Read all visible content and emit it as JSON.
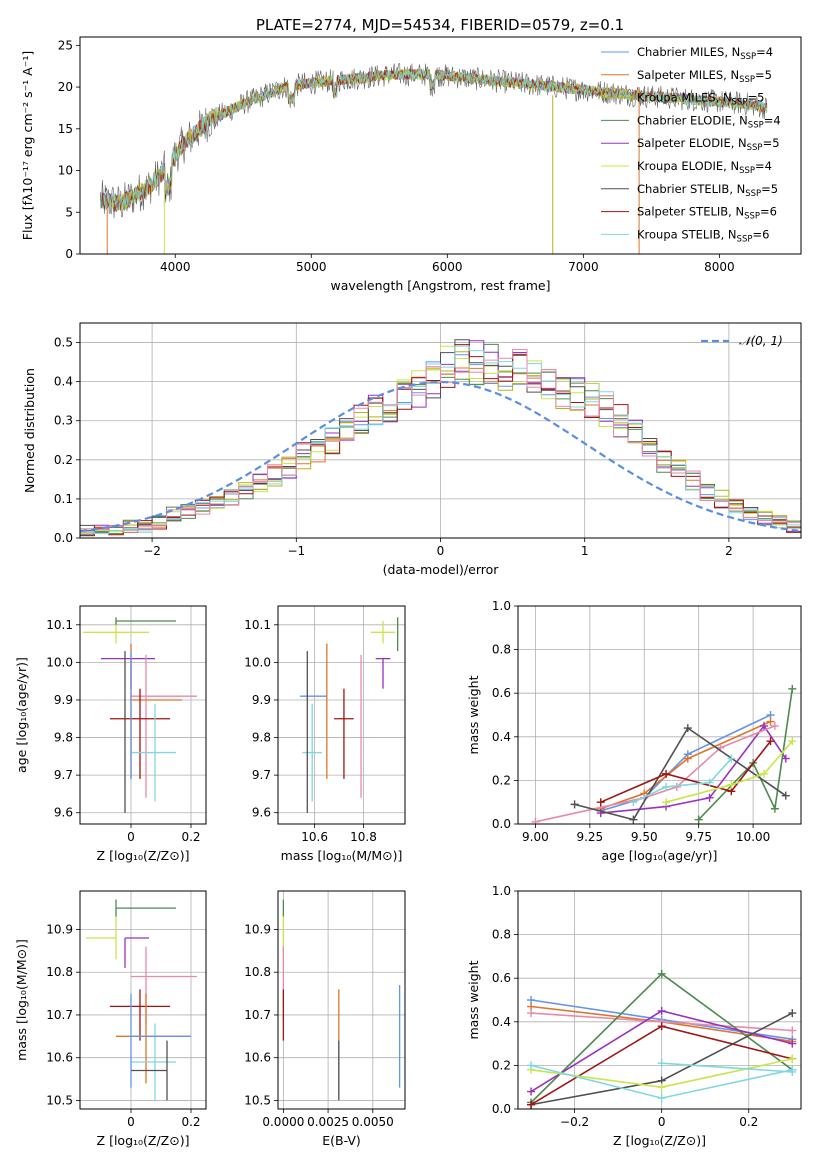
{
  "title": "PLATE=2774, MJD=54534, FIBERID=0579, z=0.1",
  "colors": {
    "chabrier_miles": "#6495ed",
    "salpeter_miles": "#e0742a",
    "kroupa_miles": "#b5b517",
    "chabrier_elodie": "#4f8a4f",
    "salpeter_elodie": "#9b30c0",
    "kroupa_elodie": "#c8e64c",
    "chabrier_stelib": "#505050",
    "salpeter_stelib": "#a01414",
    "kroupa_stelib": "#7fd8df",
    "pink": "#e88aaa",
    "gaussian": "#5b8ee0"
  },
  "chart_data": [
    {
      "id": "spectrum",
      "type": "line",
      "xlabel": "wavelength [Angstrom, rest frame]",
      "ylabel": "Flux [fλ10⁻¹⁷ erg cm⁻² s⁻¹ A⁻¹]",
      "xlim": [
        3300,
        8600
      ],
      "ylim": [
        0,
        26
      ],
      "xticks": [
        4000,
        5000,
        6000,
        7000,
        8000
      ],
      "yticks": [
        0,
        5,
        10,
        15,
        20,
        25
      ],
      "legend_position": "top-right",
      "continuum": {
        "x": [
          3450,
          3600,
          3800,
          3950,
          4050,
          4250,
          4500,
          4800,
          5000,
          5300,
          5600,
          5900,
          6200,
          6500,
          6800,
          7100,
          7400,
          7800,
          8200,
          8350
        ],
        "y": [
          6.5,
          6.0,
          8.0,
          10.5,
          13.0,
          16.0,
          18.0,
          20.0,
          20.5,
          21.0,
          21.5,
          21.5,
          21.0,
          20.5,
          20.0,
          19.5,
          19.0,
          18.5,
          18.0,
          17.5
        ]
      },
      "series": [
        {
          "name": "Chabrier MILES, N",
          "sub": "SSP",
          "suffix": "=4",
          "color": "#6495ed"
        },
        {
          "name": "Salpeter MILES, N",
          "sub": "SSP",
          "suffix": "=5",
          "color": "#e0742a"
        },
        {
          "name": "Kroupa MILES, N",
          "sub": "SSP",
          "suffix": "=5",
          "color": "#b5b517"
        },
        {
          "name": "Chabrier ELODIE, N",
          "sub": "SSP",
          "suffix": "=4",
          "color": "#4f8a4f"
        },
        {
          "name": "Salpeter ELODIE, N",
          "sub": "SSP",
          "suffix": "=5",
          "color": "#9b30c0"
        },
        {
          "name": "Kroupa ELODIE, N",
          "sub": "SSP",
          "suffix": "=4",
          "color": "#c8e64c"
        },
        {
          "name": "Chabrier STELIB, N",
          "sub": "SSP",
          "suffix": "=5",
          "color": "#505050"
        },
        {
          "name": "Salpeter STELIB, N",
          "sub": "SSP",
          "suffix": "=6",
          "color": "#a01414"
        },
        {
          "name": "Kroupa STELIB, N",
          "sub": "SSP",
          "suffix": "=6",
          "color": "#7fd8df"
        }
      ]
    },
    {
      "id": "residuals",
      "type": "step",
      "xlabel": "(data-model)/error",
      "ylabel": "Normed distribution",
      "xlim": [
        -2.5,
        2.5
      ],
      "ylim": [
        0,
        0.55
      ],
      "xticks": [
        -2,
        -1,
        0,
        1,
        2
      ],
      "yticks": [
        0.0,
        0.1,
        0.2,
        0.3,
        0.4,
        0.5
      ],
      "legend": "𝒩(0, 1)",
      "legend_position": "top-right",
      "bin_width": 0.1,
      "bin_start": -2.5,
      "mean_hist": [
        0.02,
        0.02,
        0.02,
        0.03,
        0.03,
        0.04,
        0.06,
        0.07,
        0.08,
        0.09,
        0.1,
        0.12,
        0.14,
        0.16,
        0.18,
        0.21,
        0.23,
        0.25,
        0.27,
        0.3,
        0.32,
        0.34,
        0.36,
        0.38,
        0.4,
        0.44,
        0.45,
        0.45,
        0.44,
        0.42,
        0.43,
        0.42,
        0.4,
        0.38,
        0.37,
        0.35,
        0.33,
        0.3,
        0.27,
        0.24,
        0.2,
        0.17,
        0.15,
        0.12,
        0.1,
        0.08,
        0.06,
        0.05,
        0.04,
        0.03
      ],
      "series_colors": [
        "#6495ed",
        "#e0742a",
        "#b5b517",
        "#4f8a4f",
        "#9b30c0",
        "#c8e64c",
        "#505050",
        "#a01414",
        "#7fd8df",
        "#e88aaa"
      ]
    },
    {
      "id": "age_vs_Z",
      "type": "errorbar",
      "xlabel": "Z [log₁₀(Z/Z⊙)]",
      "ylabel": "age  [log₁₀(age/yr)]",
      "xlim": [
        -0.17,
        0.25
      ],
      "ylim": [
        9.57,
        10.15
      ],
      "xticks": [
        0.0,
        0.2
      ],
      "yticks": [
        9.6,
        9.7,
        9.8,
        9.9,
        10.0,
        10.1
      ],
      "points": [
        {
          "x": -0.05,
          "xerr": [
            0.11,
            0.11
          ],
          "y": 10.08,
          "yerr": [
            0.03,
            0.03
          ],
          "color": "#c8e64c"
        },
        {
          "x": -0.05,
          "xerr": [
            0.0,
            0.2
          ],
          "y": 10.11,
          "yerr": [
            0.01,
            0.01
          ],
          "color": "#4f8a4f"
        },
        {
          "x": 0.0,
          "xerr": [
            0.1,
            0.08
          ],
          "y": 10.01,
          "yerr": [
            0.08,
            0.0
          ],
          "color": "#9b30c0"
        },
        {
          "x": 0.05,
          "xerr": [
            0.05,
            0.17
          ],
          "y": 9.91,
          "yerr": [
            0.27,
            0.11
          ],
          "color": "#e88aaa"
        },
        {
          "x": 0.0,
          "xerr": [
            0.0,
            0.17
          ],
          "y": 9.9,
          "yerr": [
            0.21,
            0.15
          ],
          "color": "#e0742a"
        },
        {
          "x": 0.03,
          "xerr": [
            0.1,
            0.1
          ],
          "y": 9.85,
          "yerr": [
            0.16,
            0.08
          ],
          "color": "#a01414"
        },
        {
          "x": 0.08,
          "xerr": [
            0.08,
            0.07
          ],
          "y": 9.76,
          "yerr": [
            0.13,
            0.13
          ],
          "color": "#7fd8df"
        },
        {
          "x": 0.0,
          "xerr": [
            0.0,
            0.0
          ],
          "y": 9.86,
          "yerr": [
            0.17,
            0.17
          ],
          "color": "#6495ed"
        },
        {
          "x": -0.02,
          "xerr": [
            0.0,
            0.0
          ],
          "y": 9.8,
          "yerr": [
            0.2,
            0.23
          ],
          "color": "#505050"
        }
      ]
    },
    {
      "id": "age_vs_mass",
      "type": "errorbar",
      "xlabel": "mass [log₁₀(M/M⊙)]",
      "ylabel": "",
      "xlim": [
        10.45,
        10.97
      ],
      "ylim": [
        9.57,
        10.15
      ],
      "xticks": [
        10.6,
        10.8
      ],
      "yticks": [
        9.6,
        9.7,
        9.8,
        9.9,
        10.0,
        10.1
      ],
      "points": [
        {
          "x": 10.88,
          "xerr": [
            0.05,
            0.05
          ],
          "y": 10.08,
          "yerr": [
            0.03,
            0.03
          ],
          "color": "#c8e64c"
        },
        {
          "x": 10.94,
          "xerr": [
            0.0,
            0.0
          ],
          "y": 10.11,
          "yerr": [
            0.08,
            0.01
          ],
          "color": "#4f8a4f"
        },
        {
          "x": 10.88,
          "xerr": [
            0.03,
            0.03
          ],
          "y": 10.01,
          "yerr": [
            0.08,
            0.0
          ],
          "color": "#9b30c0"
        },
        {
          "x": 10.79,
          "xerr": [
            0.0,
            0.0
          ],
          "y": 9.91,
          "yerr": [
            0.27,
            0.11
          ],
          "color": "#e88aaa"
        },
        {
          "x": 10.65,
          "xerr": [
            0.0,
            0.0
          ],
          "y": 9.9,
          "yerr": [
            0.21,
            0.15
          ],
          "color": "#e0742a"
        },
        {
          "x": 10.72,
          "xerr": [
            0.04,
            0.04
          ],
          "y": 9.85,
          "yerr": [
            0.16,
            0.08
          ],
          "color": "#a01414"
        },
        {
          "x": 10.59,
          "xerr": [
            0.04,
            0.04
          ],
          "y": 9.76,
          "yerr": [
            0.13,
            0.13
          ],
          "color": "#7fd8df"
        },
        {
          "x": 10.65,
          "xerr": [
            0.11,
            0.0
          ],
          "y": 9.91,
          "yerr": [
            0.0,
            0.0
          ],
          "color": "#6495ed"
        },
        {
          "x": 10.57,
          "xerr": [
            0.0,
            0.0
          ],
          "y": 9.8,
          "yerr": [
            0.2,
            0.23
          ],
          "color": "#505050"
        }
      ]
    },
    {
      "id": "mass_weight_vs_age",
      "type": "line",
      "xlabel": "age  [log₁₀(age/yr)]",
      "ylabel": "mass weight",
      "xlim": [
        8.92,
        10.22
      ],
      "ylim": [
        0,
        1
      ],
      "xticks": [
        9.0,
        9.25,
        9.5,
        9.75,
        10.0
      ],
      "yticks": [
        0.0,
        0.2,
        0.4,
        0.6,
        0.8,
        1.0
      ],
      "series": [
        {
          "color": "#6495ed",
          "x": [
            9.3,
            9.5,
            9.7,
            10.08
          ],
          "y": [
            0.06,
            0.12,
            0.32,
            0.5
          ]
        },
        {
          "color": "#e0742a",
          "x": [
            9.3,
            9.5,
            9.7,
            10.08
          ],
          "y": [
            0.07,
            0.14,
            0.3,
            0.47
          ]
        },
        {
          "color": "#9b30c0",
          "x": [
            9.3,
            9.6,
            9.8,
            10.05,
            10.15
          ],
          "y": [
            0.05,
            0.08,
            0.12,
            0.45,
            0.3
          ]
        },
        {
          "color": "#e88aaa",
          "x": [
            9.0,
            9.5,
            9.65,
            9.85,
            10.1
          ],
          "y": [
            0.01,
            0.12,
            0.17,
            0.35,
            0.45
          ]
        },
        {
          "color": "#4f8a4f",
          "x": [
            9.75,
            10.0,
            10.1,
            10.18
          ],
          "y": [
            0.02,
            0.28,
            0.07,
            0.62
          ]
        },
        {
          "color": "#505050",
          "x": [
            9.18,
            9.45,
            9.7,
            10.15
          ],
          "y": [
            0.09,
            0.02,
            0.44,
            0.13
          ]
        },
        {
          "color": "#a01414",
          "x": [
            9.3,
            9.6,
            9.9,
            10.08
          ],
          "y": [
            0.1,
            0.23,
            0.15,
            0.38
          ]
        },
        {
          "color": "#c8e64c",
          "x": [
            9.6,
            9.9,
            10.05,
            10.18
          ],
          "y": [
            0.1,
            0.18,
            0.23,
            0.38
          ]
        },
        {
          "color": "#7fd8df",
          "x": [
            9.45,
            9.6,
            9.8,
            9.9
          ],
          "y": [
            0.1,
            0.17,
            0.19,
            0.3
          ]
        }
      ]
    },
    {
      "id": "mass_vs_Z",
      "type": "errorbar",
      "xlabel": "Z [log₁₀(Z/Z⊙)]",
      "ylabel": "mass [log₁₀(M/M⊙)]",
      "xlim": [
        -0.17,
        0.25
      ],
      "ylim": [
        10.48,
        10.99
      ],
      "xticks": [
        0.0,
        0.2
      ],
      "yticks": [
        10.5,
        10.6,
        10.7,
        10.8,
        10.9
      ],
      "points": [
        {
          "x": -0.05,
          "xerr": [
            0.0,
            0.2
          ],
          "y": 10.95,
          "yerr": [
            0.02,
            0.02
          ],
          "color": "#4f8a4f"
        },
        {
          "x": -0.05,
          "xerr": [
            0.1,
            0.0
          ],
          "y": 10.88,
          "yerr": [
            0.05,
            0.05
          ],
          "color": "#c8e64c"
        },
        {
          "x": -0.02,
          "xerr": [
            0.0,
            0.08
          ],
          "y": 10.88,
          "yerr": [
            0.07,
            0.0
          ],
          "color": "#9b30c0"
        },
        {
          "x": 0.05,
          "xerr": [
            0.05,
            0.17
          ],
          "y": 10.79,
          "yerr": [
            0.11,
            0.07
          ],
          "color": "#e88aaa"
        },
        {
          "x": 0.03,
          "xerr": [
            0.1,
            0.1
          ],
          "y": 10.72,
          "yerr": [
            0.08,
            0.04
          ],
          "color": "#a01414"
        },
        {
          "x": 0.05,
          "xerr": [
            0.1,
            0.15
          ],
          "y": 10.65,
          "yerr": [
            0.11,
            0.1
          ],
          "color": "#e0742a"
        },
        {
          "x": 0.08,
          "xerr": [
            0.08,
            0.07
          ],
          "y": 10.59,
          "yerr": [
            0.09,
            0.09
          ],
          "color": "#7fd8df"
        },
        {
          "x": 0.0,
          "xerr": [
            0.0,
            0.2
          ],
          "y": 10.65,
          "yerr": [
            0.12,
            0.1
          ],
          "color": "#6495ed"
        },
        {
          "x": 0.12,
          "xerr": [
            0.12,
            0.0
          ],
          "y": 10.57,
          "yerr": [
            0.07,
            0.07
          ],
          "color": "#505050"
        }
      ]
    },
    {
      "id": "mass_vs_EBV",
      "type": "errorbar",
      "xlabel": "E(B-V)",
      "ylabel": "",
      "xlim": [
        -0.0003,
        0.0068
      ],
      "ylim": [
        10.48,
        10.99
      ],
      "xticks": [
        0.0,
        0.0025,
        0.005
      ],
      "xtick_labels": [
        "0.0000",
        "0.0025",
        "0.0050"
      ],
      "yticks": [
        10.5,
        10.6,
        10.7,
        10.8,
        10.9
      ],
      "points": [
        {
          "x": 0.0,
          "y": 10.95,
          "yerr": [
            0.02,
            0.02
          ],
          "color": "#4f8a4f"
        },
        {
          "x": 0.0,
          "y": 10.88,
          "yerr": [
            0.05,
            0.05
          ],
          "color": "#c8e64c"
        },
        {
          "x": 0.0,
          "y": 10.79,
          "yerr": [
            0.1,
            0.07
          ],
          "color": "#e88aaa"
        },
        {
          "x": 0.0,
          "y": 10.72,
          "yerr": [
            0.08,
            0.04
          ],
          "color": "#a01414"
        },
        {
          "x": 0.0031,
          "y": 10.65,
          "yerr": [
            0.1,
            0.11
          ],
          "color": "#e0742a"
        },
        {
          "x": 0.0031,
          "y": 10.59,
          "yerr": [
            0.09,
            0.05
          ],
          "color": "#7fd8df"
        },
        {
          "x": 0.0031,
          "y": 10.57,
          "yerr": [
            0.07,
            0.07
          ],
          "color": "#505050"
        },
        {
          "x": 0.0065,
          "y": 10.65,
          "yerr": [
            0.12,
            0.12
          ],
          "color": "#6495ed"
        }
      ]
    },
    {
      "id": "mass_weight_vs_Z",
      "type": "line",
      "xlabel": "Z [log₁₀(Z/Z⊙)]",
      "ylabel": "mass weight",
      "xlim": [
        -0.33,
        0.32
      ],
      "ylim": [
        0,
        1
      ],
      "xticks": [
        -0.2,
        0.0,
        0.2
      ],
      "yticks": [
        0.0,
        0.2,
        0.4,
        0.6,
        0.8,
        1.0
      ],
      "series": [
        {
          "color": "#6495ed",
          "x": [
            -0.3,
            0.0,
            0.3
          ],
          "y": [
            0.5,
            0.41,
            0.32
          ]
        },
        {
          "color": "#e0742a",
          "x": [
            -0.3,
            0.0,
            0.3
          ],
          "y": [
            0.47,
            0.4,
            0.31
          ]
        },
        {
          "color": "#e88aaa",
          "x": [
            -0.3,
            0.0,
            0.3
          ],
          "y": [
            0.44,
            0.4,
            0.36
          ]
        },
        {
          "color": "#4f8a4f",
          "x": [
            -0.3,
            0.0,
            0.3
          ],
          "y": [
            0.03,
            0.62,
            0.18
          ]
        },
        {
          "color": "#9b30c0",
          "x": [
            -0.3,
            0.0,
            0.3
          ],
          "y": [
            0.08,
            0.45,
            0.3
          ]
        },
        {
          "color": "#505050",
          "x": [
            -0.3,
            0.0,
            0.3
          ],
          "y": [
            0.02,
            0.13,
            0.44
          ]
        },
        {
          "color": "#a01414",
          "x": [
            -0.3,
            0.0,
            0.3
          ],
          "y": [
            0.02,
            0.38,
            0.23
          ]
        },
        {
          "color": "#c8e64c",
          "x": [
            -0.3,
            0.0,
            0.3
          ],
          "y": [
            0.18,
            0.1,
            0.23
          ]
        },
        {
          "color": "#7fd8df",
          "x": [
            -0.3,
            0.0,
            0.3
          ],
          "y": [
            0.2,
            0.05,
            0.18
          ]
        },
        {
          "color": "#7fd8df",
          "x": [
            0.0,
            0.3
          ],
          "y": [
            0.21,
            0.17
          ]
        }
      ]
    }
  ]
}
